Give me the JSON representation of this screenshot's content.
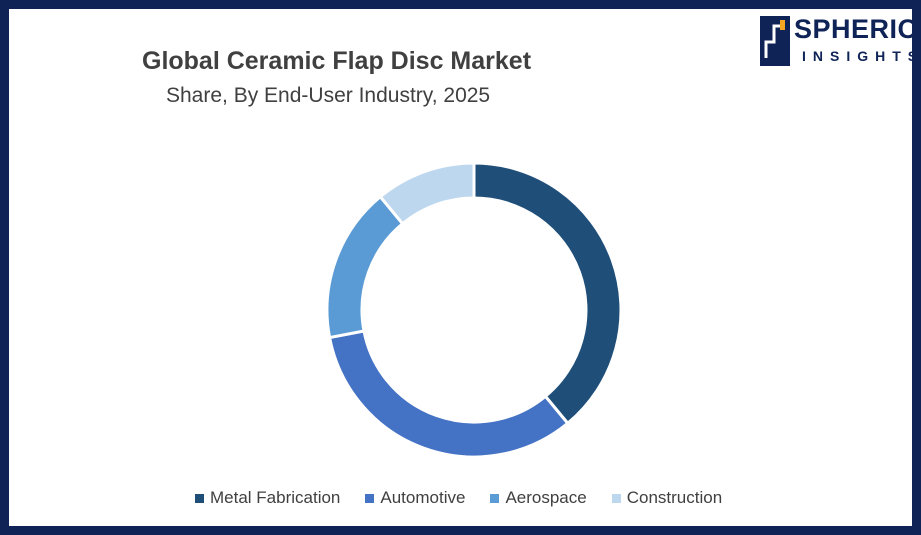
{
  "title": "Global Ceramic Flap Disc Market",
  "subtitle": "Share, By End-User Industry, 2025",
  "logo": {
    "word1": "SPHERICAL",
    "word2": "INSIGHTS",
    "color": "#0f2357"
  },
  "chart_data": {
    "type": "pie",
    "variant": "donut",
    "categories": [
      "Metal Fabrication",
      "Automotive",
      "Aerospace",
      "Construction"
    ],
    "values": [
      39,
      33,
      17,
      11
    ],
    "unit": "%",
    "colors": [
      "#1f4e79",
      "#4472c4",
      "#5b9bd5",
      "#bdd7ee"
    ],
    "legend_position": "bottom",
    "start_angle_deg": 0,
    "direction": "clockwise"
  }
}
